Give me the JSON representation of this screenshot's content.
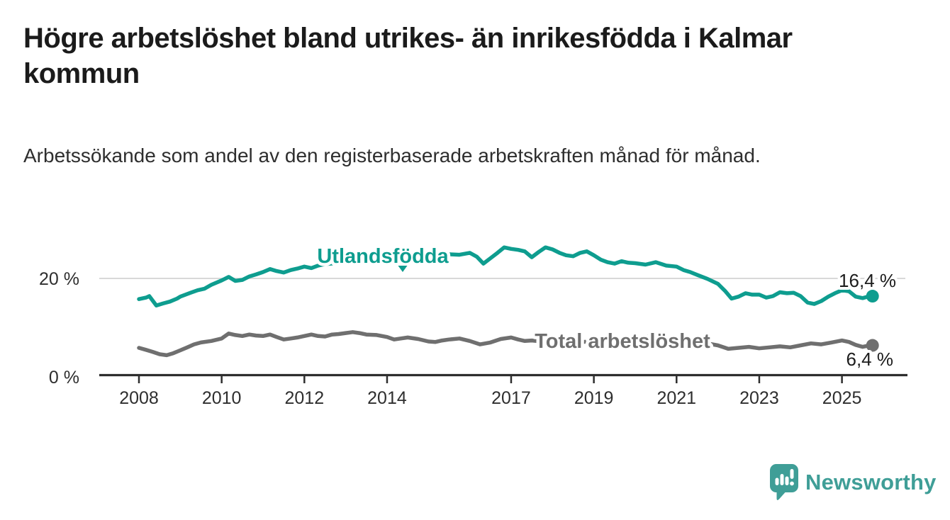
{
  "header": {
    "title": "Högre arbetslöshet bland utrikes- än inrikesfödda i Kalmar kommun",
    "subtitle": "Arbetssökande som andel av den registerbaserade arbetskraften månad för månad."
  },
  "chart_data": {
    "type": "line",
    "title": "Högre arbetslöshet bland utrikes- än inrikesfödda i Kalmar kommun",
    "subtitle": "Arbetssökande som andel av den registerbaserade arbetskraften månad för månad.",
    "unit": "%",
    "grid": "single horizontal gridline at 20 %",
    "legend_position": "inline labels on lines",
    "x_axis": {
      "range": [
        2007.05,
        2026.55
      ],
      "ticks": [
        2008,
        2010,
        2012,
        2014,
        2017,
        2019,
        2021,
        2023,
        2025
      ]
    },
    "y_axis": {
      "range": [
        0,
        28
      ],
      "ticks": [
        {
          "value": 0,
          "label": "0 %"
        },
        {
          "value": 20,
          "label": "20 %"
        }
      ]
    },
    "series": [
      {
        "name": "Utlandsfödda",
        "color": "#0e9d8f",
        "end_value_label": "16,4 %",
        "points": [
          [
            2008.0,
            15.8
          ],
          [
            2008.17,
            16.1
          ],
          [
            2008.25,
            16.4
          ],
          [
            2008.42,
            14.5
          ],
          [
            2008.58,
            14.9
          ],
          [
            2008.75,
            15.3
          ],
          [
            2008.92,
            15.9
          ],
          [
            2009.0,
            16.3
          ],
          [
            2009.25,
            17.1
          ],
          [
            2009.42,
            17.6
          ],
          [
            2009.58,
            17.9
          ],
          [
            2009.75,
            18.7
          ],
          [
            2010.0,
            19.6
          ],
          [
            2010.17,
            20.3
          ],
          [
            2010.33,
            19.5
          ],
          [
            2010.5,
            19.7
          ],
          [
            2010.67,
            20.4
          ],
          [
            2010.83,
            20.8
          ],
          [
            2011.0,
            21.3
          ],
          [
            2011.17,
            21.9
          ],
          [
            2011.33,
            21.5
          ],
          [
            2011.5,
            21.2
          ],
          [
            2011.67,
            21.7
          ],
          [
            2011.83,
            22.0
          ],
          [
            2012.0,
            22.4
          ],
          [
            2012.17,
            22.1
          ],
          [
            2012.33,
            22.6
          ],
          [
            2012.5,
            22.9
          ],
          [
            2012.75,
            23.1
          ],
          [
            2013.0,
            23.3
          ],
          [
            2013.17,
            23.8
          ],
          [
            2013.33,
            23.5
          ],
          [
            2013.58,
            23.7
          ],
          [
            2013.83,
            23.5
          ],
          [
            2014.0,
            23.9
          ],
          [
            2014.25,
            23.6
          ],
          [
            2014.5,
            24.0
          ],
          [
            2014.75,
            24.3
          ],
          [
            2015.0,
            24.4
          ],
          [
            2015.25,
            24.7
          ],
          [
            2015.5,
            24.9
          ],
          [
            2015.75,
            24.8
          ],
          [
            2016.0,
            25.2
          ],
          [
            2016.17,
            24.4
          ],
          [
            2016.33,
            23.0
          ],
          [
            2016.5,
            24.1
          ],
          [
            2016.67,
            25.2
          ],
          [
            2016.83,
            26.3
          ],
          [
            2017.0,
            26.0
          ],
          [
            2017.17,
            25.8
          ],
          [
            2017.33,
            25.5
          ],
          [
            2017.5,
            24.3
          ],
          [
            2017.67,
            25.4
          ],
          [
            2017.83,
            26.3
          ],
          [
            2018.0,
            25.9
          ],
          [
            2018.17,
            25.2
          ],
          [
            2018.33,
            24.7
          ],
          [
            2018.5,
            24.5
          ],
          [
            2018.67,
            25.2
          ],
          [
            2018.83,
            25.5
          ],
          [
            2019.0,
            24.7
          ],
          [
            2019.17,
            23.8
          ],
          [
            2019.33,
            23.3
          ],
          [
            2019.5,
            23.0
          ],
          [
            2019.67,
            23.5
          ],
          [
            2019.83,
            23.2
          ],
          [
            2020.0,
            23.1
          ],
          [
            2020.25,
            22.8
          ],
          [
            2020.5,
            23.3
          ],
          [
            2020.75,
            22.6
          ],
          [
            2021.0,
            22.4
          ],
          [
            2021.17,
            21.7
          ],
          [
            2021.33,
            21.3
          ],
          [
            2021.5,
            20.7
          ],
          [
            2021.75,
            19.9
          ],
          [
            2022.0,
            18.9
          ],
          [
            2022.17,
            17.5
          ],
          [
            2022.33,
            15.9
          ],
          [
            2022.5,
            16.3
          ],
          [
            2022.67,
            17.0
          ],
          [
            2022.83,
            16.7
          ],
          [
            2023.0,
            16.7
          ],
          [
            2023.17,
            16.1
          ],
          [
            2023.33,
            16.4
          ],
          [
            2023.5,
            17.2
          ],
          [
            2023.67,
            17.0
          ],
          [
            2023.83,
            17.1
          ],
          [
            2024.0,
            16.4
          ],
          [
            2024.17,
            15.1
          ],
          [
            2024.33,
            14.8
          ],
          [
            2024.5,
            15.4
          ],
          [
            2024.67,
            16.3
          ],
          [
            2024.83,
            17.0
          ],
          [
            2025.0,
            17.6
          ],
          [
            2025.17,
            17.4
          ],
          [
            2025.33,
            16.3
          ],
          [
            2025.5,
            16.0
          ],
          [
            2025.67,
            16.4
          ]
        ]
      },
      {
        "name": "Total arbetslöshet",
        "color": "#6f6f6f",
        "end_value_label": "6,4 %",
        "points": [
          [
            2008.0,
            5.9
          ],
          [
            2008.17,
            5.5
          ],
          [
            2008.33,
            5.1
          ],
          [
            2008.5,
            4.6
          ],
          [
            2008.67,
            4.4
          ],
          [
            2008.83,
            4.8
          ],
          [
            2009.0,
            5.4
          ],
          [
            2009.17,
            6.0
          ],
          [
            2009.33,
            6.6
          ],
          [
            2009.5,
            7.0
          ],
          [
            2009.75,
            7.3
          ],
          [
            2010.0,
            7.8
          ],
          [
            2010.17,
            8.8
          ],
          [
            2010.33,
            8.5
          ],
          [
            2010.5,
            8.3
          ],
          [
            2010.67,
            8.6
          ],
          [
            2010.83,
            8.4
          ],
          [
            2011.0,
            8.3
          ],
          [
            2011.17,
            8.6
          ],
          [
            2011.33,
            8.1
          ],
          [
            2011.5,
            7.6
          ],
          [
            2011.67,
            7.8
          ],
          [
            2011.83,
            8.0
          ],
          [
            2012.0,
            8.3
          ],
          [
            2012.17,
            8.6
          ],
          [
            2012.33,
            8.3
          ],
          [
            2012.5,
            8.2
          ],
          [
            2012.67,
            8.6
          ],
          [
            2012.83,
            8.7
          ],
          [
            2013.0,
            8.9
          ],
          [
            2013.17,
            9.1
          ],
          [
            2013.33,
            8.9
          ],
          [
            2013.5,
            8.6
          ],
          [
            2013.75,
            8.5
          ],
          [
            2014.0,
            8.1
          ],
          [
            2014.17,
            7.6
          ],
          [
            2014.33,
            7.8
          ],
          [
            2014.5,
            8.0
          ],
          [
            2014.75,
            7.7
          ],
          [
            2015.0,
            7.2
          ],
          [
            2015.17,
            7.1
          ],
          [
            2015.33,
            7.4
          ],
          [
            2015.5,
            7.6
          ],
          [
            2015.75,
            7.8
          ],
          [
            2016.0,
            7.3
          ],
          [
            2016.25,
            6.6
          ],
          [
            2016.5,
            7.0
          ],
          [
            2016.75,
            7.7
          ],
          [
            2017.0,
            8.0
          ],
          [
            2017.17,
            7.6
          ],
          [
            2017.33,
            7.3
          ],
          [
            2017.5,
            7.4
          ],
          [
            2017.75,
            7.2
          ],
          [
            2018.0,
            7.3
          ],
          [
            2018.33,
            7.0
          ],
          [
            2018.67,
            7.1
          ],
          [
            2019.0,
            7.2
          ],
          [
            2019.33,
            7.0
          ],
          [
            2019.67,
            7.2
          ],
          [
            2020.0,
            7.3
          ],
          [
            2020.33,
            8.3
          ],
          [
            2020.67,
            8.0
          ],
          [
            2021.0,
            7.7
          ],
          [
            2021.33,
            7.3
          ],
          [
            2021.67,
            6.9
          ],
          [
            2022.0,
            6.4
          ],
          [
            2022.25,
            5.7
          ],
          [
            2022.5,
            5.9
          ],
          [
            2022.75,
            6.1
          ],
          [
            2023.0,
            5.8
          ],
          [
            2023.25,
            6.0
          ],
          [
            2023.5,
            6.2
          ],
          [
            2023.75,
            6.0
          ],
          [
            2024.0,
            6.4
          ],
          [
            2024.25,
            6.8
          ],
          [
            2024.5,
            6.6
          ],
          [
            2024.75,
            7.0
          ],
          [
            2025.0,
            7.4
          ],
          [
            2025.17,
            7.1
          ],
          [
            2025.33,
            6.5
          ],
          [
            2025.5,
            6.1
          ],
          [
            2025.67,
            6.4
          ]
        ]
      }
    ],
    "colors": {
      "utlandsfodda_line": "#0e9d8f",
      "total_line": "#6f6f6f",
      "axis": "#2e2e2e",
      "gridline": "#d8d8d8",
      "value_text": "#1c1c1c"
    }
  },
  "branding": {
    "logo_text": "Newsworthy",
    "logo_color": "#3f9e97",
    "logo_icon": "speech-bubble-bar-chart-icon"
  }
}
